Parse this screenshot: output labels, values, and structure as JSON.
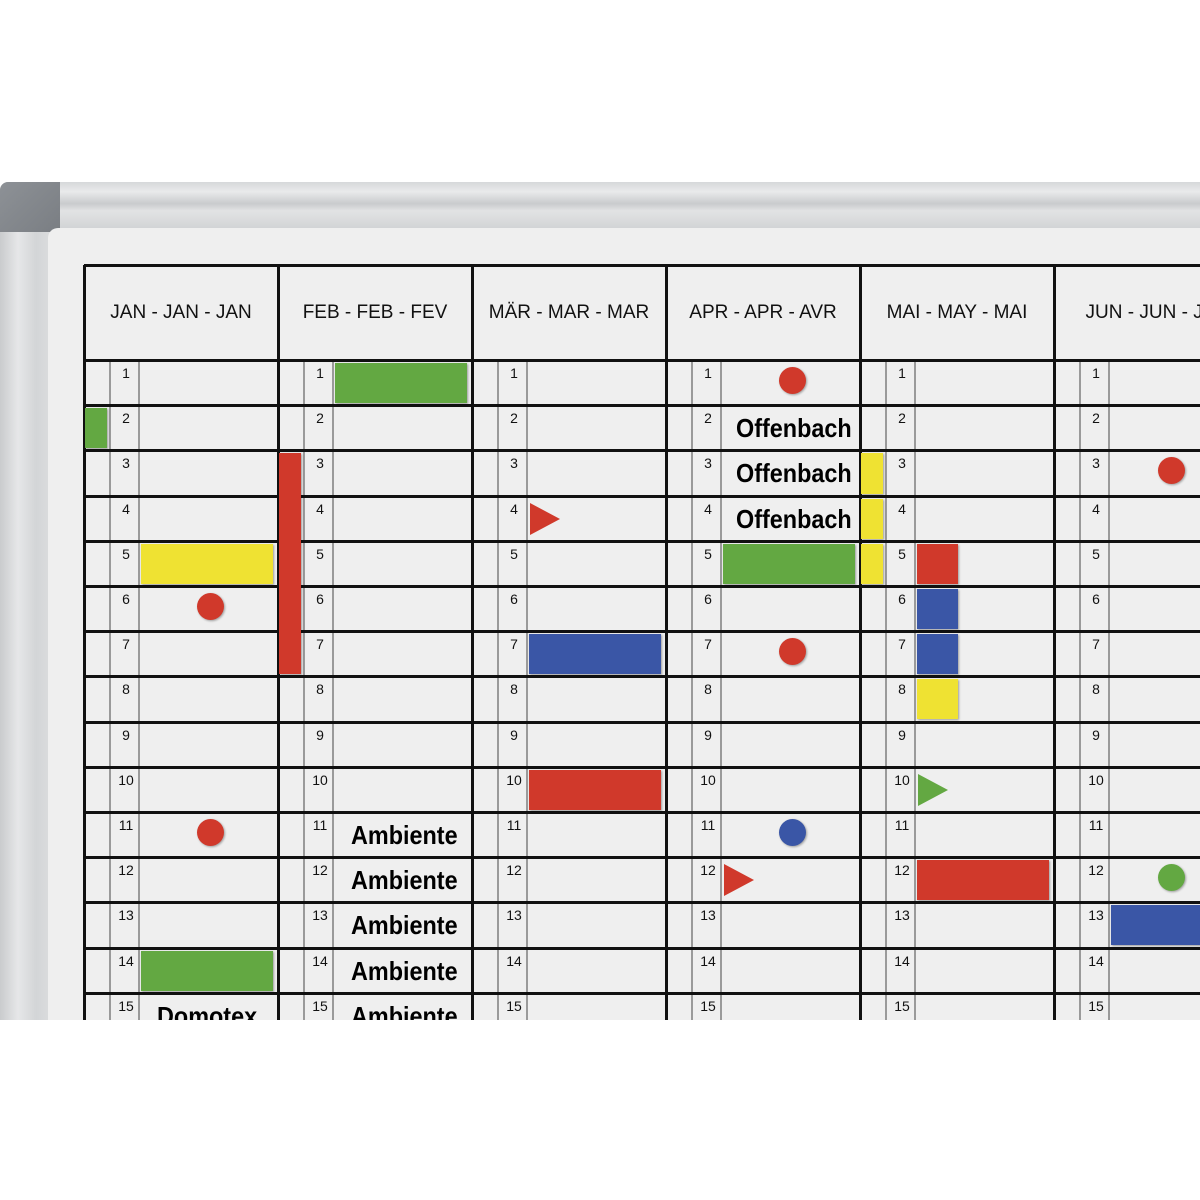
{
  "months": [
    {
      "label": "JAN - JAN - JAN"
    },
    {
      "label": "FEB - FEB - FEV"
    },
    {
      "label": "MÄR - MAR - MAR"
    },
    {
      "label": "APR - APR - AVR"
    },
    {
      "label": "MAI - MAY - MAI"
    },
    {
      "label": "JUN - JUN - JU"
    }
  ],
  "days": [
    "1",
    "2",
    "3",
    "4",
    "5",
    "6",
    "7",
    "8",
    "9",
    "10",
    "11",
    "12",
    "13",
    "14",
    "15"
  ],
  "colors": {
    "red": "#d0392b",
    "green": "#63a842",
    "yellow": "#efe232",
    "blue": "#3a56a6"
  },
  "markers": [
    {
      "month": 0,
      "day": 2,
      "type": "left",
      "color": "green"
    },
    {
      "month": 0,
      "day": 5,
      "type": "bar",
      "color": "yellow"
    },
    {
      "month": 0,
      "day": 6,
      "type": "dot",
      "color": "red"
    },
    {
      "month": 0,
      "day": 11,
      "type": "dot",
      "color": "red"
    },
    {
      "month": 0,
      "day": 14,
      "type": "bar",
      "color": "green"
    },
    {
      "month": 0,
      "day": 15,
      "type": "label",
      "text": "Domotex"
    },
    {
      "month": 1,
      "day": 1,
      "type": "bar",
      "color": "green"
    },
    {
      "month": 1,
      "day": 3,
      "days": 5,
      "type": "left",
      "color": "red"
    },
    {
      "month": 1,
      "day": 11,
      "type": "label",
      "text": "Ambiente"
    },
    {
      "month": 1,
      "day": 12,
      "type": "label",
      "text": "Ambiente"
    },
    {
      "month": 1,
      "day": 13,
      "type": "label",
      "text": "Ambiente"
    },
    {
      "month": 1,
      "day": 14,
      "type": "label",
      "text": "Ambiente"
    },
    {
      "month": 1,
      "day": 15,
      "type": "label",
      "text": "Ambiente"
    },
    {
      "month": 2,
      "day": 4,
      "type": "triangle",
      "color": "red"
    },
    {
      "month": 2,
      "day": 7,
      "type": "bar",
      "color": "blue"
    },
    {
      "month": 2,
      "day": 10,
      "type": "bar",
      "color": "red"
    },
    {
      "month": 3,
      "day": 1,
      "type": "dot",
      "color": "red"
    },
    {
      "month": 3,
      "day": 2,
      "type": "label",
      "text": "Offenbach"
    },
    {
      "month": 3,
      "day": 3,
      "type": "label",
      "text": "Offenbach"
    },
    {
      "month": 3,
      "day": 4,
      "type": "label",
      "text": "Offenbach"
    },
    {
      "month": 3,
      "day": 5,
      "type": "bar",
      "color": "green"
    },
    {
      "month": 3,
      "day": 7,
      "type": "dot",
      "color": "red"
    },
    {
      "month": 3,
      "day": 11,
      "type": "dot",
      "color": "blue"
    },
    {
      "month": 3,
      "day": 12,
      "type": "triangle",
      "color": "red"
    },
    {
      "month": 4,
      "day": 3,
      "type": "left",
      "color": "yellow"
    },
    {
      "month": 4,
      "day": 4,
      "type": "left",
      "color": "yellow"
    },
    {
      "month": 4,
      "day": 5,
      "type": "left",
      "color": "yellow"
    },
    {
      "month": 4,
      "day": 5,
      "type": "small",
      "color": "red"
    },
    {
      "month": 4,
      "day": 6,
      "type": "small",
      "color": "blue"
    },
    {
      "month": 4,
      "day": 7,
      "type": "small",
      "color": "blue"
    },
    {
      "month": 4,
      "day": 8,
      "type": "small",
      "color": "yellow"
    },
    {
      "month": 4,
      "day": 10,
      "type": "triangle",
      "color": "green"
    },
    {
      "month": 4,
      "day": 12,
      "type": "bar",
      "color": "red"
    },
    {
      "month": 5,
      "day": 3,
      "type": "dot",
      "color": "red"
    },
    {
      "month": 5,
      "day": 12,
      "type": "dot",
      "color": "green"
    },
    {
      "month": 5,
      "day": 13,
      "type": "bar",
      "color": "blue"
    }
  ]
}
